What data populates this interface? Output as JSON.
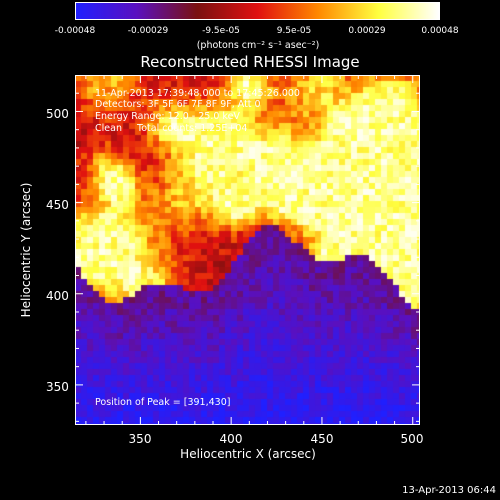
{
  "colorbar": {
    "tick_labels": [
      "-0.00048",
      "-0.00029",
      "-9.5e-05",
      "9.5e-05",
      "0.00029",
      "0.00048"
    ],
    "units": "(photons cm⁻² s⁻¹ asec⁻²)",
    "colormap": [
      "#2020ff",
      "#5a10c0",
      "#7a1010",
      "#e01010",
      "#ff8800",
      "#ffff40",
      "#ffffff"
    ]
  },
  "chart_data": {
    "type": "heatmap",
    "title": "Reconstructed RHESSI Image",
    "xlabel": "Heliocentric X (arcsec)",
    "ylabel": "Heliocentric Y (arcsec)",
    "xlim": [
      314,
      504
    ],
    "ylim": [
      328,
      520
    ],
    "xticks": [
      "350",
      "400",
      "450",
      "500"
    ],
    "yticks": [
      "350",
      "400",
      "450",
      "500"
    ],
    "value_range": [
      -0.00048,
      0.00048
    ],
    "peak_position": [
      391,
      430
    ]
  },
  "info": {
    "time_range": "11-Apr-2013 17:39:48.000 to 17:45:26.000",
    "detectors": "Detectors: 3F 5F 6F 7F 8F 9F, Att 0",
    "energy": "Energy Range: 12.0 - 25.0 keV",
    "method": "Clean     Total counts: 1.25E+04",
    "peak": "Position of Peak = [391,430]"
  },
  "timestamp": "13-Apr-2013 06:44"
}
